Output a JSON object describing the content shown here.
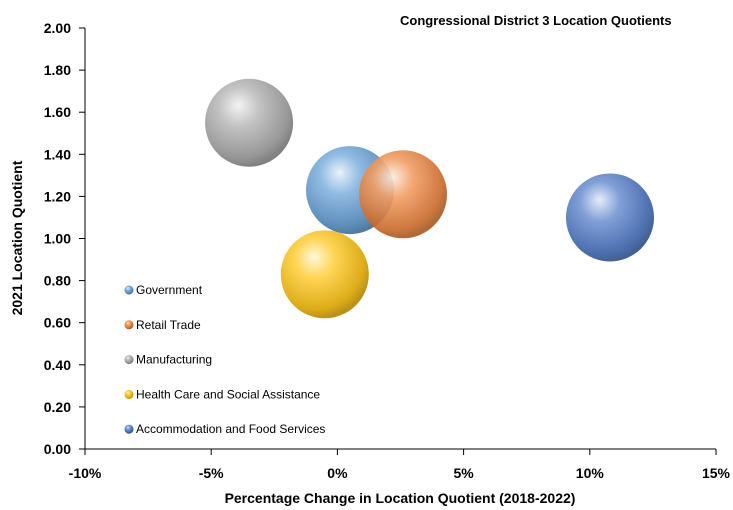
{
  "chart_data": {
    "type": "bubble",
    "title": "Congressional District 3 Location Quotients",
    "xlabel": "Percentage Change in Location Quotient (2018-2022)",
    "ylabel": "2021 Location Quotient",
    "xlim": [
      -10,
      15
    ],
    "ylim": [
      0,
      2
    ],
    "x_ticks": [
      "-10%",
      "-5%",
      "0%",
      "5%",
      "10%",
      "15%"
    ],
    "y_ticks": [
      "0.00",
      "0.20",
      "0.40",
      "0.60",
      "0.80",
      "1.00",
      "1.20",
      "1.40",
      "1.60",
      "1.80",
      "2.00"
    ],
    "grid": false,
    "legend_position": "bottom-left",
    "series": [
      {
        "name": "Government",
        "x": 0.5,
        "y": 1.23,
        "color": "#5b9bd5"
      },
      {
        "name": "Retail Trade",
        "x": 2.6,
        "y": 1.21,
        "color": "#ed7d31"
      },
      {
        "name": "Manufacturing",
        "x": -3.5,
        "y": 1.55,
        "color": "#a5a5a5"
      },
      {
        "name": "Health Care and Social Assistance",
        "x": -0.5,
        "y": 0.83,
        "color": "#ffc000"
      },
      {
        "name": "Accommodation and Food Services",
        "x": 10.8,
        "y": 1.1,
        "color": "#4472c4"
      }
    ]
  }
}
